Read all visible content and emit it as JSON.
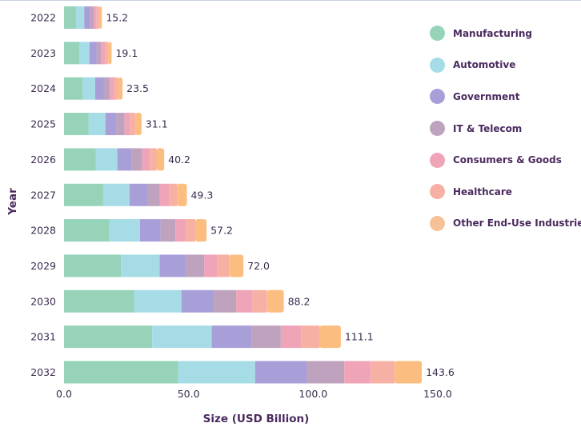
{
  "chart_data": {
    "type": "bar",
    "orientation": "horizontal",
    "stacked": true,
    "title": "",
    "xlabel": "Size (USD Billion)",
    "ylabel": "Year",
    "xlim": [
      0,
      150
    ],
    "xticks": [
      "0.0",
      "50.0",
      "100.0",
      "150.0"
    ],
    "xtick_values": [
      0,
      50,
      100,
      150
    ],
    "categories": [
      "2022",
      "2023",
      "2024",
      "2025",
      "2026",
      "2027",
      "2028",
      "2029",
      "2030",
      "2031",
      "2032"
    ],
    "totals": [
      "15.2",
      "19.1",
      "23.5",
      "31.1",
      "40.2",
      "49.3",
      "57.2",
      "72.0",
      "88.2",
      "111.1",
      "143.6"
    ],
    "legend_position": "right",
    "series": [
      {
        "name": "Manufacturing",
        "color": "#96d3b9",
        "values": [
          4.8,
          6.1,
          7.5,
          9.9,
          12.8,
          15.7,
          18.2,
          22.9,
          28.1,
          35.4,
          45.8
        ]
      },
      {
        "name": "Automotive",
        "color": "#a6dce6",
        "values": [
          3.3,
          4.1,
          5.0,
          6.7,
          8.6,
          10.6,
          12.3,
          15.5,
          19.0,
          23.9,
          30.9
        ]
      },
      {
        "name": "Government",
        "color": "#a89fd8",
        "values": [
          2.3,
          2.8,
          3.4,
          4.5,
          5.8,
          7.1,
          8.3,
          10.4,
          12.8,
          16.1,
          20.8
        ]
      },
      {
        "name": "IT & Telecom",
        "color": "#bfa3be",
        "values": [
          1.6,
          2.0,
          2.5,
          3.2,
          4.2,
          5.1,
          5.9,
          7.5,
          9.2,
          11.6,
          15.0
        ]
      },
      {
        "name": "Consumers & Goods",
        "color": "#f0a4b8",
        "values": [
          1.1,
          1.4,
          1.7,
          2.3,
          3.0,
          3.6,
          4.2,
          5.3,
          6.5,
          8.2,
          10.6
        ]
      },
      {
        "name": "Healthcare",
        "color": "#f7b1a4",
        "values": [
          1.0,
          1.3,
          1.6,
          2.1,
          2.7,
          3.3,
          3.8,
          4.8,
          5.9,
          7.4,
          9.6
        ]
      },
      {
        "name": "Other End-Use Industries",
        "color": "#fbbd80",
        "values": [
          1.1,
          1.4,
          1.8,
          2.4,
          3.1,
          3.9,
          4.5,
          5.6,
          6.7,
          8.5,
          10.9
        ]
      }
    ]
  },
  "legend": {
    "items": [
      {
        "label": "Manufacturing",
        "color": "#96d3b9"
      },
      {
        "label": "Automotive",
        "color": "#a6dce6"
      },
      {
        "label": "Government",
        "color": "#a89fd8"
      },
      {
        "label": "IT & Telecom",
        "color": "#bfa3be"
      },
      {
        "label": "Consumers & Goods",
        "color": "#f0a4b8"
      },
      {
        "label": "Healthcare",
        "color": "#f7b1a4"
      },
      {
        "label": "Other End-Use Industries",
        "color": "#f6c197"
      }
    ]
  }
}
